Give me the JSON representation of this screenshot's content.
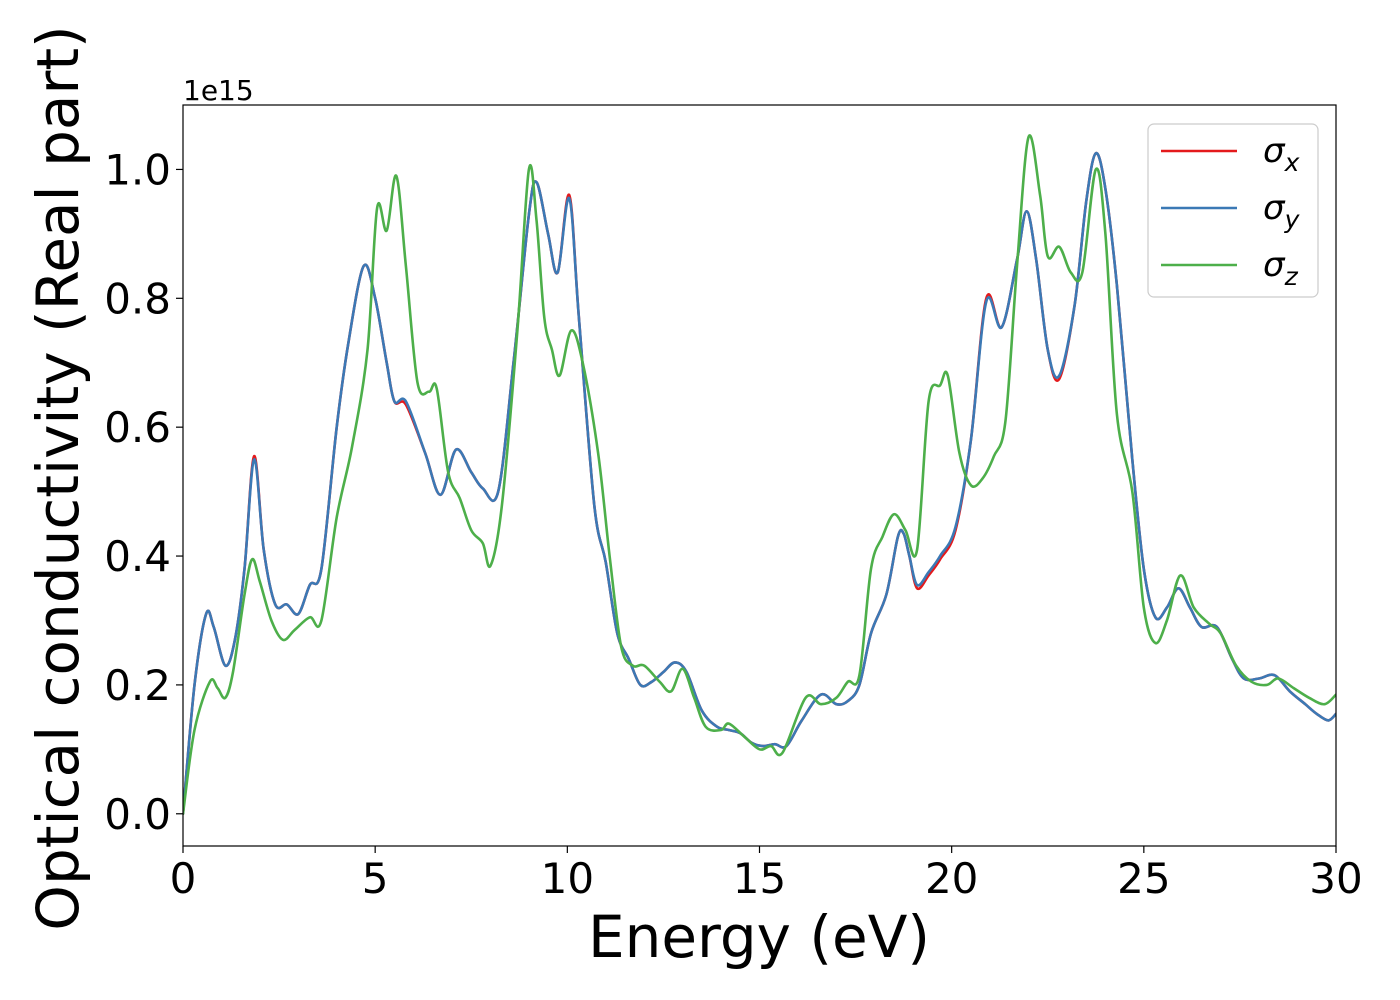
{
  "chart_data": {
    "type": "line",
    "xlabel": "Energy (eV)",
    "ylabel": "Optical conductivity (Real part)",
    "y_offset_text": "1e15",
    "xlim": [
      0,
      30
    ],
    "ylim": [
      -0.05,
      1.1
    ],
    "x_ticks": [
      0,
      5,
      10,
      15,
      20,
      25,
      30
    ],
    "x_tick_labels": [
      "0",
      "5",
      "10",
      "15",
      "20",
      "25",
      "30"
    ],
    "y_ticks": [
      0.0,
      0.2,
      0.4,
      0.6,
      0.8,
      1.0
    ],
    "y_tick_labels": [
      "0.0",
      "0.2",
      "0.4",
      "0.6",
      "0.8",
      "1.0"
    ],
    "grid": false,
    "legend_position": "top-right",
    "series": [
      {
        "name": "σx",
        "base": "σ",
        "sub": "x",
        "color": "#e41a1c",
        "points": [
          [
            0,
            0
          ],
          [
            0.3,
            0.2
          ],
          [
            0.6,
            0.31
          ],
          [
            0.8,
            0.29
          ],
          [
            1.1,
            0.23
          ],
          [
            1.35,
            0.27
          ],
          [
            1.6,
            0.38
          ],
          [
            1.85,
            0.555
          ],
          [
            2.1,
            0.41
          ],
          [
            2.4,
            0.325
          ],
          [
            2.7,
            0.325
          ],
          [
            3.0,
            0.31
          ],
          [
            3.3,
            0.355
          ],
          [
            3.6,
            0.38
          ],
          [
            4.0,
            0.6
          ],
          [
            4.3,
            0.73
          ],
          [
            4.7,
            0.85
          ],
          [
            5.0,
            0.8
          ],
          [
            5.3,
            0.7
          ],
          [
            5.5,
            0.64
          ],
          [
            5.8,
            0.635
          ],
          [
            6.3,
            0.56
          ],
          [
            6.7,
            0.495
          ],
          [
            7.1,
            0.565
          ],
          [
            7.5,
            0.53
          ],
          [
            7.8,
            0.505
          ],
          [
            8.2,
            0.5
          ],
          [
            8.6,
            0.7
          ],
          [
            9.0,
            0.93
          ],
          [
            9.2,
            0.98
          ],
          [
            9.5,
            0.9
          ],
          [
            9.75,
            0.84
          ],
          [
            10.05,
            0.96
          ],
          [
            10.3,
            0.77
          ],
          [
            10.7,
            0.48
          ],
          [
            11.0,
            0.39
          ],
          [
            11.3,
            0.28
          ],
          [
            11.6,
            0.24
          ],
          [
            11.9,
            0.2
          ],
          [
            12.2,
            0.205
          ],
          [
            12.5,
            0.22
          ],
          [
            12.8,
            0.235
          ],
          [
            13.1,
            0.22
          ],
          [
            13.5,
            0.16
          ],
          [
            13.9,
            0.135
          ],
          [
            14.2,
            0.13
          ],
          [
            14.5,
            0.125
          ],
          [
            14.8,
            0.11
          ],
          [
            15.1,
            0.105
          ],
          [
            15.4,
            0.108
          ],
          [
            15.7,
            0.105
          ],
          [
            16.1,
            0.145
          ],
          [
            16.6,
            0.185
          ],
          [
            17.0,
            0.17
          ],
          [
            17.3,
            0.175
          ],
          [
            17.6,
            0.2
          ],
          [
            17.9,
            0.28
          ],
          [
            18.3,
            0.34
          ],
          [
            18.6,
            0.43
          ],
          [
            18.75,
            0.435
          ],
          [
            18.9,
            0.4
          ],
          [
            19.1,
            0.35
          ],
          [
            19.4,
            0.37
          ],
          [
            19.7,
            0.395
          ],
          [
            20.1,
            0.44
          ],
          [
            20.5,
            0.58
          ],
          [
            20.9,
            0.8
          ],
          [
            21.3,
            0.755
          ],
          [
            21.7,
            0.86
          ],
          [
            21.95,
            0.935
          ],
          [
            22.2,
            0.86
          ],
          [
            22.5,
            0.72
          ],
          [
            22.8,
            0.675
          ],
          [
            23.2,
            0.79
          ],
          [
            23.5,
            0.95
          ],
          [
            23.75,
            1.025
          ],
          [
            24.0,
            0.97
          ],
          [
            24.3,
            0.82
          ],
          [
            24.7,
            0.55
          ],
          [
            25.0,
            0.38
          ],
          [
            25.3,
            0.305
          ],
          [
            25.6,
            0.32
          ],
          [
            25.9,
            0.35
          ],
          [
            26.2,
            0.32
          ],
          [
            26.5,
            0.29
          ],
          [
            26.9,
            0.29
          ],
          [
            27.3,
            0.24
          ],
          [
            27.6,
            0.21
          ],
          [
            28.0,
            0.21
          ],
          [
            28.4,
            0.215
          ],
          [
            28.8,
            0.19
          ],
          [
            29.2,
            0.17
          ],
          [
            29.5,
            0.155
          ],
          [
            29.8,
            0.145
          ],
          [
            30.0,
            0.155
          ]
        ]
      },
      {
        "name": "σy",
        "base": "σ",
        "sub": "y",
        "color": "#3b79b5",
        "points": [
          [
            0,
            0
          ],
          [
            0.3,
            0.2
          ],
          [
            0.6,
            0.31
          ],
          [
            0.8,
            0.29
          ],
          [
            1.1,
            0.23
          ],
          [
            1.35,
            0.27
          ],
          [
            1.6,
            0.38
          ],
          [
            1.85,
            0.55
          ],
          [
            2.1,
            0.41
          ],
          [
            2.4,
            0.325
          ],
          [
            2.7,
            0.325
          ],
          [
            3.0,
            0.31
          ],
          [
            3.3,
            0.355
          ],
          [
            3.6,
            0.38
          ],
          [
            4.0,
            0.6
          ],
          [
            4.3,
            0.73
          ],
          [
            4.7,
            0.85
          ],
          [
            5.0,
            0.8
          ],
          [
            5.3,
            0.7
          ],
          [
            5.5,
            0.64
          ],
          [
            5.8,
            0.64
          ],
          [
            6.3,
            0.56
          ],
          [
            6.7,
            0.495
          ],
          [
            7.1,
            0.565
          ],
          [
            7.5,
            0.53
          ],
          [
            7.8,
            0.505
          ],
          [
            8.2,
            0.5
          ],
          [
            8.6,
            0.7
          ],
          [
            9.0,
            0.93
          ],
          [
            9.2,
            0.98
          ],
          [
            9.5,
            0.9
          ],
          [
            9.75,
            0.84
          ],
          [
            10.05,
            0.955
          ],
          [
            10.3,
            0.77
          ],
          [
            10.7,
            0.48
          ],
          [
            11.0,
            0.39
          ],
          [
            11.3,
            0.28
          ],
          [
            11.6,
            0.24
          ],
          [
            11.9,
            0.2
          ],
          [
            12.2,
            0.205
          ],
          [
            12.5,
            0.22
          ],
          [
            12.8,
            0.235
          ],
          [
            13.1,
            0.22
          ],
          [
            13.5,
            0.16
          ],
          [
            13.9,
            0.135
          ],
          [
            14.2,
            0.13
          ],
          [
            14.5,
            0.125
          ],
          [
            14.8,
            0.11
          ],
          [
            15.1,
            0.105
          ],
          [
            15.4,
            0.108
          ],
          [
            15.7,
            0.105
          ],
          [
            16.1,
            0.145
          ],
          [
            16.6,
            0.185
          ],
          [
            17.0,
            0.17
          ],
          [
            17.3,
            0.175
          ],
          [
            17.6,
            0.2
          ],
          [
            17.9,
            0.28
          ],
          [
            18.3,
            0.34
          ],
          [
            18.6,
            0.43
          ],
          [
            18.75,
            0.435
          ],
          [
            18.9,
            0.4
          ],
          [
            19.1,
            0.355
          ],
          [
            19.4,
            0.375
          ],
          [
            19.7,
            0.4
          ],
          [
            20.1,
            0.445
          ],
          [
            20.5,
            0.58
          ],
          [
            20.9,
            0.795
          ],
          [
            21.3,
            0.755
          ],
          [
            21.7,
            0.86
          ],
          [
            21.95,
            0.935
          ],
          [
            22.2,
            0.86
          ],
          [
            22.5,
            0.72
          ],
          [
            22.8,
            0.68
          ],
          [
            23.2,
            0.79
          ],
          [
            23.5,
            0.95
          ],
          [
            23.75,
            1.025
          ],
          [
            24.0,
            0.97
          ],
          [
            24.3,
            0.82
          ],
          [
            24.7,
            0.55
          ],
          [
            25.0,
            0.38
          ],
          [
            25.3,
            0.305
          ],
          [
            25.6,
            0.32
          ],
          [
            25.9,
            0.35
          ],
          [
            26.2,
            0.32
          ],
          [
            26.5,
            0.29
          ],
          [
            26.9,
            0.29
          ],
          [
            27.3,
            0.24
          ],
          [
            27.6,
            0.21
          ],
          [
            28.0,
            0.21
          ],
          [
            28.4,
            0.215
          ],
          [
            28.8,
            0.19
          ],
          [
            29.2,
            0.17
          ],
          [
            29.5,
            0.155
          ],
          [
            29.8,
            0.145
          ],
          [
            30.0,
            0.155
          ]
        ]
      },
      {
        "name": "σz",
        "base": "σ",
        "sub": "z",
        "color": "#4daf4a",
        "points": [
          [
            0,
            0
          ],
          [
            0.3,
            0.13
          ],
          [
            0.7,
            0.205
          ],
          [
            0.9,
            0.195
          ],
          [
            1.1,
            0.18
          ],
          [
            1.3,
            0.22
          ],
          [
            1.6,
            0.34
          ],
          [
            1.8,
            0.395
          ],
          [
            2.0,
            0.36
          ],
          [
            2.3,
            0.3
          ],
          [
            2.6,
            0.27
          ],
          [
            2.9,
            0.285
          ],
          [
            3.3,
            0.305
          ],
          [
            3.6,
            0.3
          ],
          [
            4.0,
            0.46
          ],
          [
            4.4,
            0.57
          ],
          [
            4.8,
            0.72
          ],
          [
            5.05,
            0.94
          ],
          [
            5.3,
            0.905
          ],
          [
            5.55,
            0.99
          ],
          [
            5.8,
            0.85
          ],
          [
            6.1,
            0.67
          ],
          [
            6.4,
            0.655
          ],
          [
            6.6,
            0.66
          ],
          [
            6.9,
            0.53
          ],
          [
            7.2,
            0.49
          ],
          [
            7.5,
            0.44
          ],
          [
            7.8,
            0.42
          ],
          [
            8.0,
            0.385
          ],
          [
            8.3,
            0.48
          ],
          [
            8.7,
            0.75
          ],
          [
            9.0,
            1.0
          ],
          [
            9.2,
            0.92
          ],
          [
            9.4,
            0.77
          ],
          [
            9.6,
            0.72
          ],
          [
            9.8,
            0.68
          ],
          [
            10.1,
            0.75
          ],
          [
            10.4,
            0.7
          ],
          [
            10.8,
            0.56
          ],
          [
            11.1,
            0.4
          ],
          [
            11.4,
            0.26
          ],
          [
            11.7,
            0.23
          ],
          [
            12.0,
            0.23
          ],
          [
            12.4,
            0.205
          ],
          [
            12.7,
            0.19
          ],
          [
            13.0,
            0.225
          ],
          [
            13.3,
            0.18
          ],
          [
            13.6,
            0.135
          ],
          [
            14.0,
            0.13
          ],
          [
            14.2,
            0.14
          ],
          [
            14.6,
            0.12
          ],
          [
            15.0,
            0.1
          ],
          [
            15.3,
            0.105
          ],
          [
            15.6,
            0.095
          ],
          [
            16.2,
            0.18
          ],
          [
            16.6,
            0.17
          ],
          [
            17.0,
            0.18
          ],
          [
            17.3,
            0.205
          ],
          [
            17.6,
            0.215
          ],
          [
            17.9,
            0.38
          ],
          [
            18.2,
            0.43
          ],
          [
            18.5,
            0.465
          ],
          [
            18.8,
            0.44
          ],
          [
            19.1,
            0.41
          ],
          [
            19.4,
            0.64
          ],
          [
            19.7,
            0.665
          ],
          [
            19.9,
            0.68
          ],
          [
            20.2,
            0.56
          ],
          [
            20.5,
            0.51
          ],
          [
            20.8,
            0.52
          ],
          [
            21.1,
            0.555
          ],
          [
            21.4,
            0.61
          ],
          [
            21.7,
            0.85
          ],
          [
            22.0,
            1.05
          ],
          [
            22.3,
            0.96
          ],
          [
            22.5,
            0.865
          ],
          [
            22.8,
            0.88
          ],
          [
            23.1,
            0.84
          ],
          [
            23.4,
            0.84
          ],
          [
            23.75,
            1.0
          ],
          [
            24.0,
            0.9
          ],
          [
            24.3,
            0.62
          ],
          [
            24.7,
            0.5
          ],
          [
            25.0,
            0.32
          ],
          [
            25.3,
            0.265
          ],
          [
            25.6,
            0.3
          ],
          [
            25.95,
            0.37
          ],
          [
            26.3,
            0.32
          ],
          [
            26.7,
            0.295
          ],
          [
            27.0,
            0.28
          ],
          [
            27.4,
            0.23
          ],
          [
            27.8,
            0.205
          ],
          [
            28.2,
            0.2
          ],
          [
            28.5,
            0.21
          ],
          [
            28.9,
            0.195
          ],
          [
            29.3,
            0.18
          ],
          [
            29.7,
            0.17
          ],
          [
            30.0,
            0.185
          ]
        ]
      }
    ]
  }
}
